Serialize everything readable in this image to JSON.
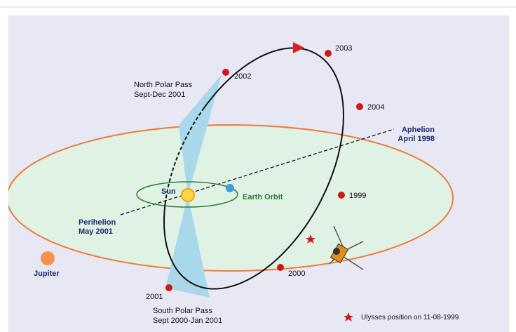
{
  "diagram": {
    "years": [
      "2002",
      "2003",
      "2004",
      "1999",
      "2000",
      "2001"
    ],
    "north_pass": [
      "North Polar Pass",
      "Sept-Dec 2001"
    ],
    "south_pass": [
      "South Polar Pass",
      "Sept 2000-Jan 2001"
    ],
    "aphelion": [
      "Aphelion",
      "April 1998"
    ],
    "perihelion": [
      "Perihelion",
      "May 2001"
    ],
    "sun": "Sun",
    "earth_orbit": "Earth Orbit",
    "jupiter": "Jupiter",
    "legend": "Ulysses position on 11-08-1999"
  }
}
